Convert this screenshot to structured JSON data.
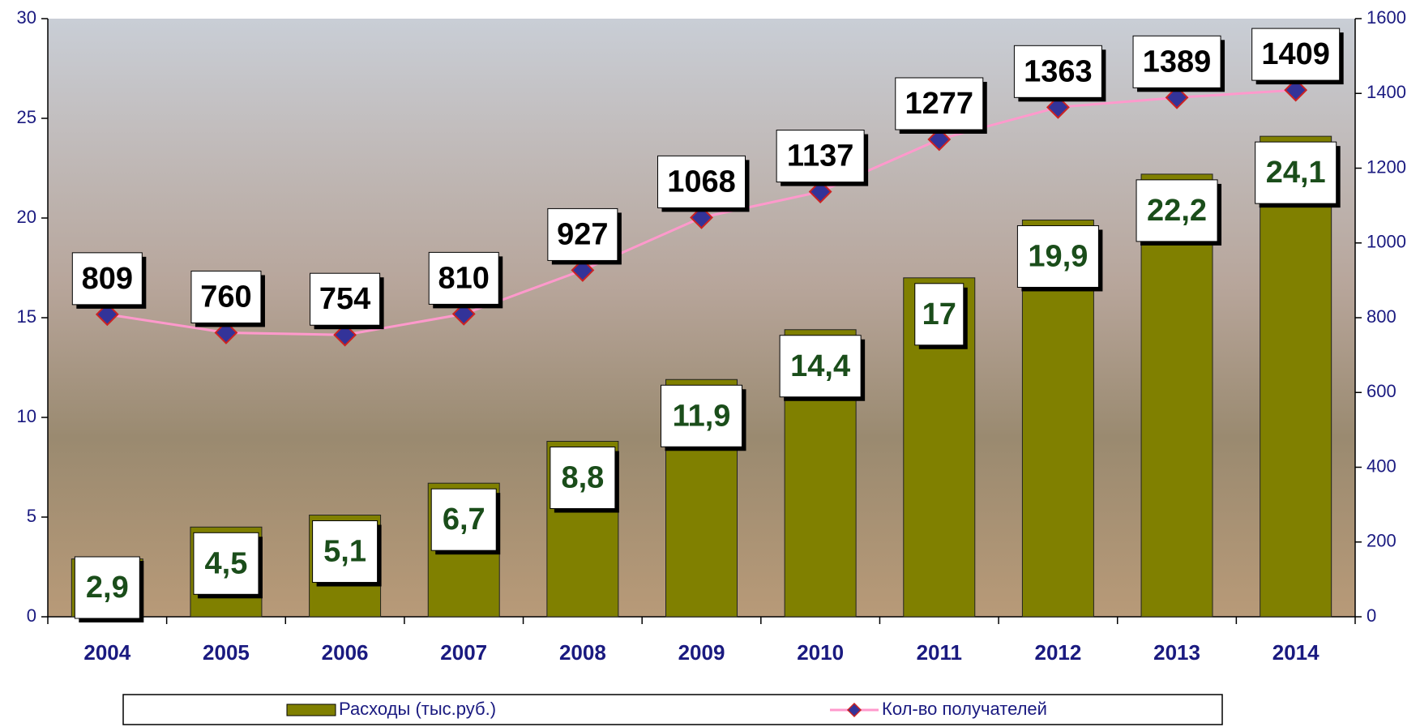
{
  "chart_data": {
    "type": "bar-line",
    "categories": [
      "2004",
      "2005",
      "2006",
      "2007",
      "2008",
      "2009",
      "2010",
      "2011",
      "2012",
      "2013",
      "2014"
    ],
    "series": [
      {
        "name": "Расходы (тыс.руб.)",
        "type": "bar",
        "color": "#808000",
        "axis": "y",
        "values": [
          2.9,
          4.5,
          5.1,
          6.7,
          8.8,
          11.9,
          14.4,
          17,
          19.9,
          22.2,
          24.1
        ],
        "value_labels": [
          "2,9",
          "4,5",
          "5,1",
          "6,7",
          "8,8",
          "11,9",
          "14,4",
          "17",
          "19,9",
          "22,2",
          "24,1"
        ]
      },
      {
        "name": "Кол-во получателей",
        "type": "line",
        "color": "#ff99cc",
        "marker_color": "#333399",
        "axis": "y2",
        "values": [
          809,
          760,
          754,
          810,
          927,
          1068,
          1137,
          1277,
          1363,
          1389,
          1409
        ]
      }
    ],
    "ylim": [
      0,
      30
    ],
    "yticks": [
      0,
      5,
      10,
      15,
      20,
      25,
      30
    ],
    "y2lim": [
      0,
      1600
    ],
    "y2ticks": [
      0,
      200,
      400,
      600,
      800,
      1000,
      1200,
      1400,
      1600
    ],
    "legend": "bottom"
  }
}
